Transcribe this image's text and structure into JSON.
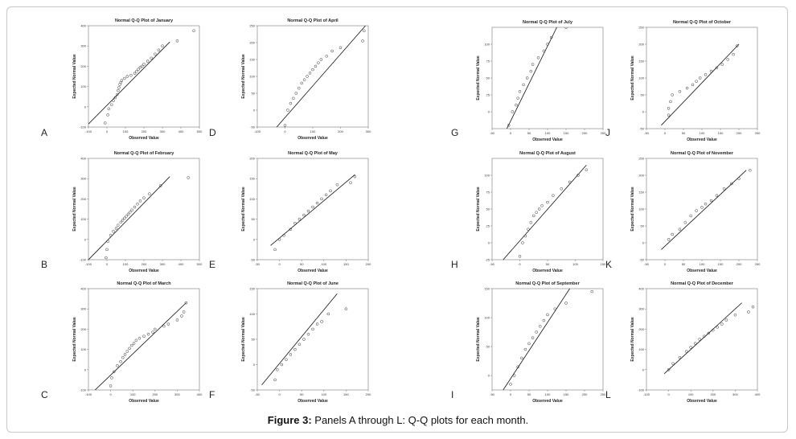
{
  "figure": {
    "caption_label": "Figure 3:",
    "caption_text": " Panels A through L: Q-Q plots for each month."
  },
  "chart_data": [
    {
      "panel": "A",
      "type": "scatter",
      "title": "Normal Q-Q Plot of January",
      "xlabel": "Observed Value",
      "ylabel": "Expected Normal Value",
      "xlim": [
        -100,
        500
      ],
      "ylim": [
        -100,
        400
      ],
      "xticks": [
        -100,
        0,
        100,
        200,
        300,
        400,
        500
      ],
      "yticks": [
        -100,
        0,
        100,
        200,
        300,
        400
      ],
      "line": [
        [
          -100,
          -85
        ],
        [
          340,
          320
        ]
      ],
      "points": [
        [
          -10,
          -80
        ],
        [
          5,
          -40
        ],
        [
          10,
          -10
        ],
        [
          25,
          10
        ],
        [
          35,
          30
        ],
        [
          45,
          45
        ],
        [
          55,
          60
        ],
        [
          60,
          80
        ],
        [
          65,
          95
        ],
        [
          70,
          110
        ],
        [
          75,
          120
        ],
        [
          80,
          130
        ],
        [
          95,
          140
        ],
        [
          110,
          150
        ],
        [
          130,
          155
        ],
        [
          150,
          165
        ],
        [
          160,
          175
        ],
        [
          170,
          185
        ],
        [
          180,
          195
        ],
        [
          190,
          200
        ],
        [
          200,
          210
        ],
        [
          220,
          225
        ],
        [
          240,
          240
        ],
        [
          260,
          260
        ],
        [
          280,
          280
        ],
        [
          300,
          300
        ],
        [
          380,
          325
        ],
        [
          470,
          375
        ]
      ]
    },
    {
      "panel": "B",
      "type": "scatter",
      "title": "Normal Q-Q Plot of February",
      "xlabel": "Observed Value",
      "ylabel": "Expected Normal Value",
      "xlim": [
        -100,
        500
      ],
      "ylim": [
        -100,
        400
      ],
      "xticks": [
        -100,
        0,
        100,
        200,
        300,
        400,
        500
      ],
      "yticks": [
        -100,
        0,
        100,
        200,
        300,
        400
      ],
      "line": [
        [
          -100,
          -100
        ],
        [
          340,
          310
        ]
      ],
      "points": [
        [
          -5,
          -90
        ],
        [
          0,
          -50
        ],
        [
          5,
          -10
        ],
        [
          20,
          20
        ],
        [
          35,
          40
        ],
        [
          50,
          55
        ],
        [
          60,
          70
        ],
        [
          75,
          85
        ],
        [
          85,
          95
        ],
        [
          95,
          105
        ],
        [
          105,
          115
        ],
        [
          115,
          125
        ],
        [
          125,
          135
        ],
        [
          135,
          145
        ],
        [
          150,
          160
        ],
        [
          165,
          175
        ],
        [
          180,
          190
        ],
        [
          200,
          205
        ],
        [
          230,
          225
        ],
        [
          290,
          265
        ],
        [
          440,
          305
        ]
      ]
    },
    {
      "panel": "C",
      "type": "scatter",
      "title": "Normal Q-Q Plot of March",
      "xlabel": "Observed Value",
      "ylabel": "Expected Normal Value",
      "xlim": [
        -100,
        400
      ],
      "ylim": [
        -100,
        400
      ],
      "xticks": [
        -100,
        0,
        100,
        200,
        300,
        400
      ],
      "yticks": [
        -100,
        0,
        100,
        200,
        300,
        400
      ],
      "line": [
        [
          -70,
          -100
        ],
        [
          340,
          330
        ]
      ],
      "points": [
        [
          0,
          -80
        ],
        [
          5,
          -40
        ],
        [
          15,
          -10
        ],
        [
          30,
          20
        ],
        [
          45,
          40
        ],
        [
          55,
          60
        ],
        [
          65,
          75
        ],
        [
          75,
          90
        ],
        [
          85,
          105
        ],
        [
          95,
          120
        ],
        [
          105,
          130
        ],
        [
          115,
          145
        ],
        [
          130,
          155
        ],
        [
          150,
          165
        ],
        [
          170,
          175
        ],
        [
          190,
          185
        ],
        [
          200,
          200
        ],
        [
          240,
          215
        ],
        [
          260,
          225
        ],
        [
          300,
          245
        ],
        [
          320,
          265
        ],
        [
          330,
          285
        ],
        [
          340,
          330
        ]
      ]
    },
    {
      "panel": "D",
      "type": "scatter",
      "title": "Normal Q-Q Plot of April",
      "xlabel": "Observed Value",
      "ylabel": "Expected Normal Value",
      "xlim": [
        -100,
        300
      ],
      "ylim": [
        -50,
        250
      ],
      "xticks": [
        -100,
        0,
        100,
        200,
        300
      ],
      "yticks": [
        -50,
        0,
        50,
        100,
        150,
        200,
        250
      ],
      "line": [
        [
          -30,
          -50
        ],
        [
          290,
          250
        ]
      ],
      "points": [
        [
          0,
          -45
        ],
        [
          10,
          0
        ],
        [
          20,
          20
        ],
        [
          30,
          35
        ],
        [
          40,
          50
        ],
        [
          50,
          65
        ],
        [
          60,
          80
        ],
        [
          70,
          90
        ],
        [
          80,
          100
        ],
        [
          90,
          110
        ],
        [
          100,
          120
        ],
        [
          110,
          130
        ],
        [
          120,
          140
        ],
        [
          130,
          150
        ],
        [
          150,
          160
        ],
        [
          170,
          175
        ],
        [
          200,
          185
        ],
        [
          280,
          205
        ],
        [
          285,
          235
        ]
      ]
    },
    {
      "panel": "E",
      "type": "scatter",
      "title": "Normal Q-Q Plot of May",
      "xlabel": "Observed Value",
      "ylabel": "Expected Normal Value",
      "xlim": [
        -50,
        200
      ],
      "ylim": [
        -50,
        200
      ],
      "xticks": [
        -50,
        0,
        50,
        100,
        150,
        200
      ],
      "yticks": [
        -50,
        0,
        50,
        100,
        150,
        200
      ],
      "line": [
        [
          -20,
          -15
        ],
        [
          170,
          160
        ]
      ],
      "points": [
        [
          -10,
          -25
        ],
        [
          0,
          0
        ],
        [
          10,
          10
        ],
        [
          25,
          25
        ],
        [
          35,
          40
        ],
        [
          45,
          50
        ],
        [
          55,
          60
        ],
        [
          65,
          70
        ],
        [
          75,
          80
        ],
        [
          85,
          90
        ],
        [
          95,
          100
        ],
        [
          105,
          110
        ],
        [
          115,
          120
        ],
        [
          130,
          135
        ],
        [
          160,
          140
        ],
        [
          170,
          155
        ]
      ]
    },
    {
      "panel": "F",
      "type": "scatter",
      "title": "Normal Q-Q Plot of June",
      "xlabel": "Observed Value",
      "ylabel": "Expected Normal Value",
      "xlim": [
        -50,
        200
      ],
      "ylim": [
        -50,
        150
      ],
      "xticks": [
        -50,
        0,
        50,
        100,
        150,
        200
      ],
      "yticks": [
        -50,
        0,
        50,
        100,
        150
      ],
      "line": [
        [
          -40,
          -40
        ],
        [
          130,
          140
        ]
      ],
      "points": [
        [
          -10,
          -30
        ],
        [
          -5,
          -10
        ],
        [
          5,
          0
        ],
        [
          15,
          10
        ],
        [
          25,
          20
        ],
        [
          35,
          30
        ],
        [
          45,
          40
        ],
        [
          55,
          50
        ],
        [
          65,
          60
        ],
        [
          75,
          70
        ],
        [
          85,
          80
        ],
        [
          95,
          85
        ],
        [
          110,
          100
        ],
        [
          150,
          110
        ]
      ]
    },
    {
      "panel": "G",
      "type": "scatter",
      "title": "Normal Q-Q Plot of July",
      "xlabel": "Observed Value",
      "ylabel": "Expected Normal Value",
      "xlim": [
        -50,
        250
      ],
      "ylim": [
        -25,
        125
      ],
      "xticks": [
        -50,
        0,
        50,
        100,
        150,
        200,
        250
      ],
      "yticks": [
        0,
        25,
        50,
        75,
        100
      ],
      "line": [
        [
          -10,
          -25
        ],
        [
          125,
          125
        ]
      ],
      "points": [
        [
          -5,
          -20
        ],
        [
          5,
          0
        ],
        [
          15,
          10
        ],
        [
          20,
          20
        ],
        [
          25,
          30
        ],
        [
          35,
          40
        ],
        [
          45,
          50
        ],
        [
          55,
          60
        ],
        [
          60,
          70
        ],
        [
          75,
          80
        ],
        [
          90,
          90
        ],
        [
          100,
          100
        ],
        [
          110,
          110
        ],
        [
          150,
          125
        ]
      ]
    },
    {
      "panel": "H",
      "type": "scatter",
      "title": "Normal Q-Q Plot of August",
      "xlabel": "Observed Value",
      "ylabel": "Expected Normal Value",
      "xlim": [
        -50,
        150
      ],
      "ylim": [
        -25,
        125
      ],
      "xticks": [
        -50,
        0,
        50,
        100,
        150
      ],
      "yticks": [
        -25,
        0,
        25,
        50,
        75,
        100
      ],
      "line": [
        [
          -30,
          -25
        ],
        [
          120,
          115
        ]
      ],
      "points": [
        [
          0,
          -20
        ],
        [
          5,
          0
        ],
        [
          10,
          10
        ],
        [
          15,
          20
        ],
        [
          20,
          30
        ],
        [
          25,
          40
        ],
        [
          30,
          45
        ],
        [
          35,
          50
        ],
        [
          40,
          55
        ],
        [
          50,
          60
        ],
        [
          60,
          70
        ],
        [
          75,
          80
        ],
        [
          90,
          90
        ],
        [
          105,
          100
        ],
        [
          120,
          108
        ]
      ]
    },
    {
      "panel": "I",
      "type": "scatter",
      "title": "Normal Q-Q Plot of September",
      "xlabel": "Observed Value",
      "ylabel": "Expected Normal Value",
      "xlim": [
        -50,
        250
      ],
      "ylim": [
        -25,
        150
      ],
      "xticks": [
        -50,
        0,
        50,
        100,
        150,
        200,
        250
      ],
      "yticks": [
        0,
        50,
        100,
        150
      ],
      "line": [
        [
          -20,
          -25
        ],
        [
          160,
          150
        ]
      ],
      "points": [
        [
          0,
          -15
        ],
        [
          10,
          0
        ],
        [
          20,
          15
        ],
        [
          30,
          30
        ],
        [
          40,
          45
        ],
        [
          50,
          55
        ],
        [
          60,
          65
        ],
        [
          70,
          75
        ],
        [
          80,
          85
        ],
        [
          90,
          95
        ],
        [
          100,
          105
        ],
        [
          120,
          115
        ],
        [
          150,
          125
        ],
        [
          220,
          145
        ]
      ]
    },
    {
      "panel": "J",
      "type": "scatter",
      "title": "Normal Q-Q Plot of October",
      "xlabel": "Observed Value",
      "ylabel": "Expected Normal Value",
      "xlim": [
        -50,
        250
      ],
      "ylim": [
        -50,
        250
      ],
      "xticks": [
        -50,
        0,
        50,
        100,
        150,
        200,
        250
      ],
      "yticks": [
        -50,
        0,
        50,
        100,
        150,
        200,
        250
      ],
      "line": [
        [
          -10,
          -40
        ],
        [
          200,
          200
        ]
      ],
      "points": [
        [
          10,
          -10
        ],
        [
          10,
          10
        ],
        [
          15,
          30
        ],
        [
          20,
          50
        ],
        [
          40,
          60
        ],
        [
          60,
          70
        ],
        [
          75,
          80
        ],
        [
          85,
          90
        ],
        [
          95,
          100
        ],
        [
          110,
          110
        ],
        [
          125,
          120
        ],
        [
          140,
          130
        ],
        [
          155,
          140
        ],
        [
          170,
          155
        ],
        [
          185,
          170
        ],
        [
          195,
          195
        ]
      ]
    },
    {
      "panel": "K",
      "type": "scatter",
      "title": "Normal Q-Q Plot of November",
      "xlabel": "Observed Value",
      "ylabel": "Expected Normal Value",
      "xlim": [
        -50,
        250
      ],
      "ylim": [
        -50,
        250
      ],
      "xticks": [
        -50,
        0,
        50,
        100,
        150,
        200,
        250
      ],
      "yticks": [
        -50,
        0,
        50,
        100,
        150,
        200,
        250
      ],
      "line": [
        [
          -10,
          -20
        ],
        [
          220,
          215
        ]
      ],
      "points": [
        [
          10,
          10
        ],
        [
          20,
          25
        ],
        [
          40,
          40
        ],
        [
          55,
          60
        ],
        [
          70,
          80
        ],
        [
          85,
          95
        ],
        [
          100,
          105
        ],
        [
          110,
          115
        ],
        [
          125,
          125
        ],
        [
          140,
          140
        ],
        [
          160,
          160
        ],
        [
          180,
          175
        ],
        [
          200,
          190
        ],
        [
          230,
          215
        ]
      ]
    },
    {
      "panel": "L",
      "type": "scatter",
      "title": "Normal Q-Q Plot of December",
      "xlabel": "Observed Value",
      "ylabel": "Expected Normal Value",
      "xlim": [
        -100,
        400
      ],
      "ylim": [
        -100,
        400
      ],
      "xticks": [
        -100,
        0,
        100,
        200,
        300,
        400
      ],
      "yticks": [
        -100,
        0,
        100,
        200,
        300,
        400
      ],
      "line": [
        [
          -20,
          -20
        ],
        [
          330,
          330
        ]
      ],
      "points": [
        [
          0,
          0
        ],
        [
          20,
          30
        ],
        [
          50,
          60
        ],
        [
          80,
          90
        ],
        [
          100,
          110
        ],
        [
          120,
          130
        ],
        [
          140,
          150
        ],
        [
          160,
          165
        ],
        [
          180,
          180
        ],
        [
          200,
          195
        ],
        [
          220,
          210
        ],
        [
          240,
          225
        ],
        [
          260,
          245
        ],
        [
          300,
          270
        ],
        [
          360,
          285
        ],
        [
          380,
          310
        ]
      ]
    }
  ]
}
